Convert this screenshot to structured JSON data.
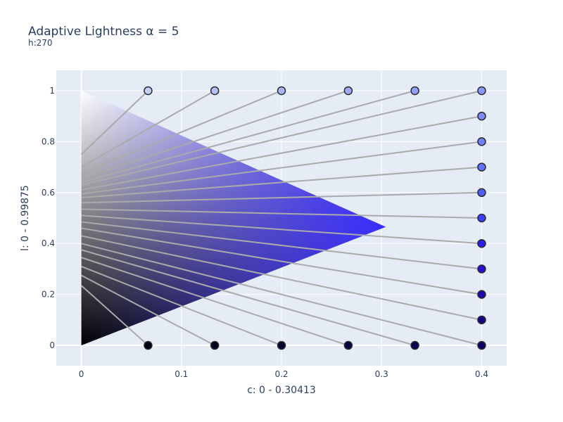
{
  "chart_data": {
    "type": "scatter",
    "title": "Adaptive Lightness α = 5",
    "subtitle": "h:270",
    "xlabel": "c: 0 - 0.30413",
    "ylabel": "l: 0 - 0.99875",
    "xlim": [
      -0.025,
      0.425
    ],
    "ylim": [
      -0.08,
      1.08
    ],
    "x_ticks": [
      0,
      0.1,
      0.2,
      0.3,
      0.4
    ],
    "x_tick_labels": [
      "0",
      "0.1",
      "0.2",
      "0.3",
      "0.4"
    ],
    "y_ticks": [
      0,
      0.2,
      0.4,
      0.6,
      0.8,
      1
    ],
    "y_tick_labels": [
      "0",
      "0.2",
      "0.4",
      "0.6",
      "0.8",
      "1"
    ],
    "grid": true,
    "gamut_triangle": {
      "vertices": [
        [
          0,
          0
        ],
        [
          0,
          1
        ],
        [
          0.30413,
          0.465
        ]
      ],
      "hue": 270
    },
    "points": [
      {
        "x": 0.0667,
        "y": 1.0,
        "l0": 0.75,
        "color": "#c2ceff"
      },
      {
        "x": 0.1333,
        "y": 1.0,
        "l0": 0.7,
        "color": "#b5c1ff"
      },
      {
        "x": 0.2,
        "y": 1.0,
        "l0": 0.675,
        "color": "#a9b4ff"
      },
      {
        "x": 0.2667,
        "y": 1.0,
        "l0": 0.655,
        "color": "#9ea9ff"
      },
      {
        "x": 0.3333,
        "y": 1.0,
        "l0": 0.64,
        "color": "#94a0ff"
      },
      {
        "x": 0.4,
        "y": 1.0,
        "l0": 0.63,
        "color": "#8b98ff"
      },
      {
        "x": 0.4,
        "y": 0.9,
        "l0": 0.61,
        "color": "#7f8cff"
      },
      {
        "x": 0.4,
        "y": 0.8,
        "l0": 0.595,
        "color": "#7080ff"
      },
      {
        "x": 0.4,
        "y": 0.7,
        "l0": 0.58,
        "color": "#6172ff"
      },
      {
        "x": 0.4,
        "y": 0.6,
        "l0": 0.56,
        "color": "#4f5eff"
      },
      {
        "x": 0.4,
        "y": 0.5,
        "l0": 0.535,
        "color": "#3a3fff"
      },
      {
        "x": 0.4,
        "y": 0.4,
        "l0": 0.51,
        "color": "#2a1df5"
      },
      {
        "x": 0.4,
        "y": 0.3,
        "l0": 0.485,
        "color": "#2410d6"
      },
      {
        "x": 0.4,
        "y": 0.2,
        "l0": 0.46,
        "color": "#1c09b0"
      },
      {
        "x": 0.4,
        "y": 0.1,
        "l0": 0.43,
        "color": "#15058a"
      },
      {
        "x": 0.4,
        "y": 0.0,
        "l0": 0.4,
        "color": "#0f036a"
      },
      {
        "x": 0.3333,
        "y": 0.0,
        "l0": 0.375,
        "color": "#0b0256"
      },
      {
        "x": 0.2667,
        "y": 0.0,
        "l0": 0.345,
        "color": "#080244"
      },
      {
        "x": 0.2,
        "y": 0.0,
        "l0": 0.31,
        "color": "#050132"
      },
      {
        "x": 0.1333,
        "y": 0.0,
        "l0": 0.275,
        "color": "#030122"
      },
      {
        "x": 0.0667,
        "y": 0.0,
        "l0": 0.235,
        "color": "#020114"
      }
    ],
    "colors": {
      "plot_background": "#e5ecf6",
      "grid": "#ffffff",
      "connector_line": "#aaaaaa",
      "marker_outline": "#2a2a2a",
      "text": "#2a3f5f"
    }
  }
}
